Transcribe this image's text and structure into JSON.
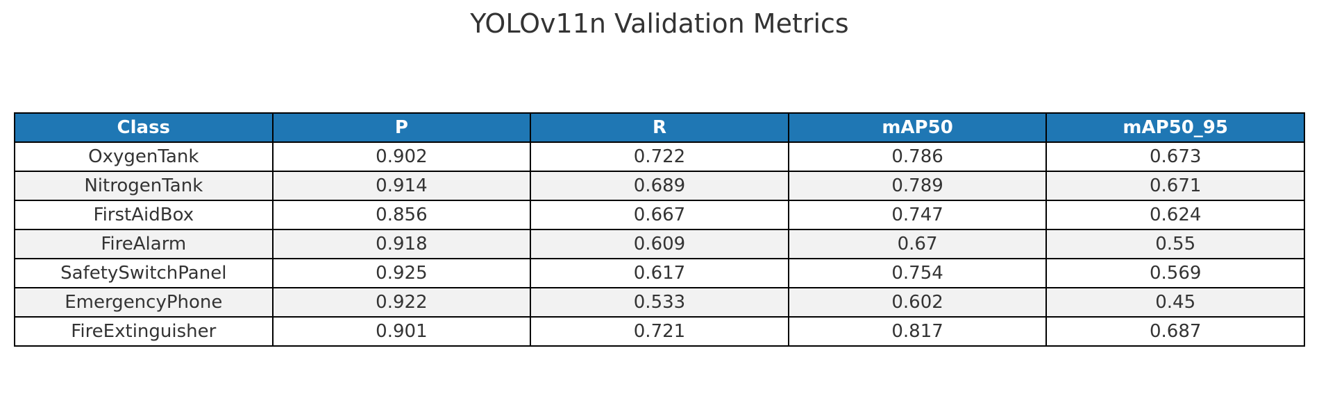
{
  "chart_data": {
    "type": "table",
    "title": "YOLOv11n Validation Metrics",
    "columns": [
      "Class",
      "P",
      "R",
      "mAP50",
      "mAP50_95"
    ],
    "rows": [
      [
        "OxygenTank",
        "0.902",
        "0.722",
        "0.786",
        "0.673"
      ],
      [
        "NitrogenTank",
        "0.914",
        "0.689",
        "0.789",
        "0.671"
      ],
      [
        "FirstAidBox",
        "0.856",
        "0.667",
        "0.747",
        "0.624"
      ],
      [
        "FireAlarm",
        "0.918",
        "0.609",
        "0.67",
        "0.55"
      ],
      [
        "SafetySwitchPanel",
        "0.925",
        "0.617",
        "0.754",
        "0.569"
      ],
      [
        "EmergencyPhone",
        "0.922",
        "0.533",
        "0.602",
        "0.45"
      ],
      [
        "FireExtinguisher",
        "0.901",
        "0.721",
        "0.817",
        "0.687"
      ]
    ],
    "colors": {
      "header_bg": "#1f77b4",
      "header_text": "#ffffff",
      "row_alt_bg": "#f2f2f2",
      "row_bg": "#ffffff",
      "border": "#000000"
    }
  }
}
